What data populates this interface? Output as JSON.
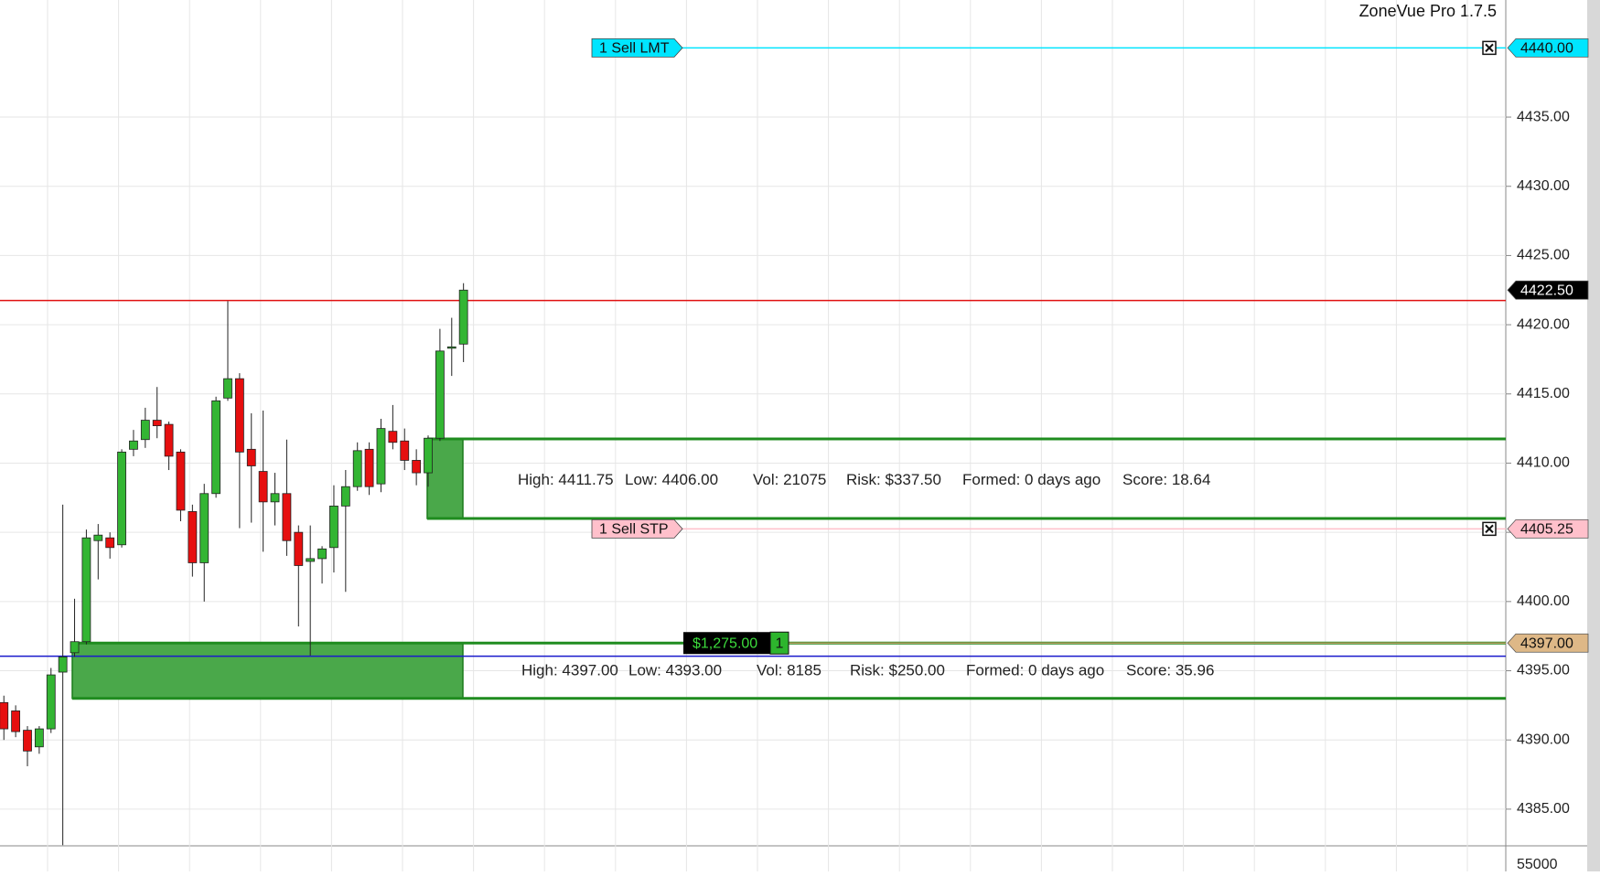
{
  "title": "ZoneVue Pro 1.7.5",
  "chart_data": {
    "type": "candlestick",
    "up_color": "#33b533",
    "down_color": "#e60f0f",
    "open": [
      4392.7,
      4392.1,
      4390.7,
      4389.5,
      4390.8,
      4394.9,
      4396.3,
      4397.1,
      4404.4,
      4404.6,
      4404.1,
      4411,
      4411.7,
      4413.1,
      4412.8,
      4410.8,
      4406.5,
      4402.8,
      4407.8,
      4414.7,
      4416.1,
      4411,
      4409.4,
      4407.2,
      4407.8,
      4405,
      4402.9,
      4403.1,
      4403.9,
      4406.9,
      4408.3,
      4411,
      4408.5,
      4412.3,
      4411.6,
      4410.2,
      4409.3,
      4411.8,
      4418.3,
      4418.6
    ],
    "high": [
      4393.2,
      4392.5,
      4391,
      4391,
      4395.2,
      4407,
      4400.2,
      4405.2,
      4405.6,
      4405,
      4411,
      4412.4,
      4414,
      4415.5,
      4413,
      4411,
      4407,
      4408.5,
      4414.8,
      4421.7,
      4416.5,
      4413.6,
      4413.8,
      4409.3,
      4411.7,
      4405.5,
      4405.5,
      4404,
      4408.4,
      4409.5,
      4411.5,
      4411.5,
      4413.2,
      4414.2,
      4412.5,
      4411,
      4412,
      4419.7,
      4420.5,
      4423
    ],
    "low": [
      4390,
      4390.2,
      4388.1,
      4389,
      4390.5,
      4382.4,
      4396,
      4396.9,
      4401.6,
      4403.1,
      4403.9,
      4410.5,
      4411.1,
      4411.8,
      4409.5,
      4405.8,
      4401.8,
      4400,
      4407.5,
      4414.5,
      4405.3,
      4405.7,
      4403.6,
      4405.5,
      4403.3,
      4398.2,
      4396.1,
      4401.3,
      4402.1,
      4400.7,
      4408,
      4407.7,
      4407.9,
      4411,
      4409.5,
      4408.4,
      4408.3,
      4411.6,
      4416.3,
      4417.3
    ],
    "close": [
      4390.8,
      4390.6,
      4389.2,
      4390.8,
      4394.7,
      4396,
      4397.1,
      4404.6,
      4404.8,
      4403.9,
      4410.8,
      4411.6,
      4413.1,
      4412.7,
      4410.5,
      4406.6,
      4402.8,
      4407.8,
      4414.5,
      4416.1,
      4410.8,
      4409.8,
      4407.2,
      4407.8,
      4404.4,
      4402.6,
      4403.1,
      4403.8,
      4406.9,
      4408.3,
      4410.9,
      4408.3,
      4412.5,
      4411.5,
      4410.2,
      4409.3,
      4411.8,
      4418.1,
      4418.4,
      4422.5
    ],
    "ylim": [
      4382.35,
      4443.46
    ],
    "yticks": [
      {
        "value": 4385,
        "label": "4385.00"
      },
      {
        "value": 4390,
        "label": "4390.00"
      },
      {
        "value": 4395,
        "label": "4395.00"
      },
      {
        "value": 4400,
        "label": "4400.00"
      },
      {
        "value": 4405,
        "label": "4405.00"
      },
      {
        "value": 4410,
        "label": "4410.00"
      },
      {
        "value": 4415,
        "label": "4415.00"
      },
      {
        "value": 4420,
        "label": "4420.00"
      },
      {
        "value": 4425,
        "label": "4425.00"
      },
      {
        "value": 4430,
        "label": "4430.00"
      },
      {
        "value": 4435,
        "label": "4435.00"
      }
    ],
    "grid": true,
    "lines": [
      {
        "value": 4421.75,
        "color": "#e01010"
      },
      {
        "value": 4396.05,
        "color": "#1a1acc"
      }
    ],
    "last_price": {
      "value": 4422.5,
      "label": "4422.50"
    },
    "orders": [
      {
        "name": "1 Sell LMT",
        "value": 4440,
        "label": "4440.00",
        "color": "#00e5ff"
      },
      {
        "name": "1 Sell STP",
        "value": 4405.25,
        "label": "4405.25",
        "color": "#ffc0cb"
      }
    ],
    "position": {
      "pnl": "$1,275.00",
      "quantity": 1,
      "value": 4397,
      "label": "4397.00",
      "color": "#deb887"
    },
    "zones": [
      {
        "high": 4411.75,
        "low": 4406,
        "details": [
          "High: 4411.75",
          "Low: 4406.00",
          "Vol: 21075",
          "Risk: $337.50",
          "Formed: 0 days ago",
          "Score: 18.64"
        ]
      },
      {
        "high": 4397,
        "low": 4393,
        "details": [
          "High: 4397.00",
          "Low: 4393.00",
          "Vol: 8185",
          "Risk: $250.00",
          "Formed: 0 days ago",
          "Score: 35.96"
        ]
      }
    ],
    "volume_axis_label": 55000
  }
}
